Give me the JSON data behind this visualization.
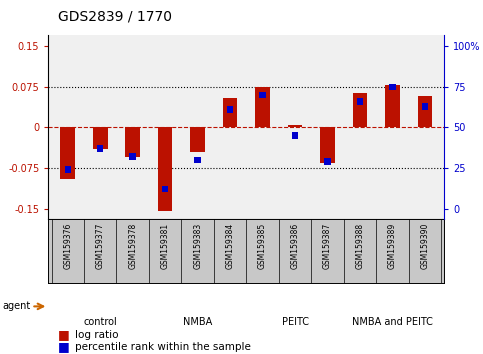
{
  "title": "GDS2839 / 1770",
  "samples": [
    "GSM159376",
    "GSM159377",
    "GSM159378",
    "GSM159381",
    "GSM159383",
    "GSM159384",
    "GSM159385",
    "GSM159386",
    "GSM159387",
    "GSM159388",
    "GSM159389",
    "GSM159390"
  ],
  "log_ratio": [
    -0.095,
    -0.04,
    -0.055,
    -0.155,
    -0.045,
    0.055,
    0.075,
    0.005,
    -0.065,
    0.063,
    0.078,
    0.058
  ],
  "percentile": [
    22,
    35,
    30,
    10,
    28,
    63,
    72,
    43,
    27,
    68,
    77,
    65
  ],
  "groups": [
    {
      "label": "control",
      "color": "#d8f5d8",
      "start": 0,
      "end": 3
    },
    {
      "label": "NMBA",
      "color": "#7dcf7d",
      "start": 3,
      "end": 6
    },
    {
      "label": "PEITC",
      "color": "#7dcf7d",
      "start": 6,
      "end": 9
    },
    {
      "label": "NMBA and PEITC",
      "color": "#52c452",
      "start": 9,
      "end": 12
    }
  ],
  "ylim": [
    -0.17,
    0.17
  ],
  "y_ticks_left": [
    -0.15,
    -0.075,
    0,
    0.075,
    0.15
  ],
  "y_ticks_right": [
    0,
    25,
    50,
    75,
    100
  ],
  "bar_color_red": "#bb1100",
  "bar_color_blue": "#0000cc",
  "bar_width": 0.45,
  "blue_bar_width": 0.2,
  "background_plot": "#f0f0f0",
  "background_labels": "#c8c8c8"
}
